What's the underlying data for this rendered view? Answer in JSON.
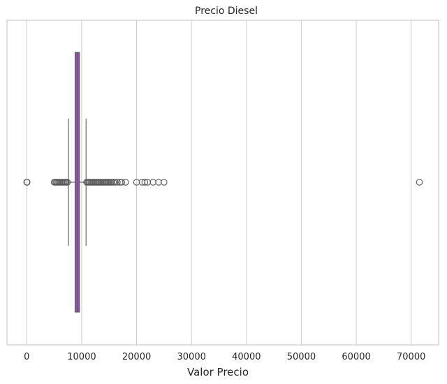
{
  "chart_data": {
    "type": "boxplot",
    "orientation": "horizontal",
    "title": "Precio Diesel",
    "xlabel": "Valor Precio",
    "ylabel": "",
    "xlim": [
      -3600,
      75000
    ],
    "x_ticks": [
      0,
      10000,
      20000,
      30000,
      40000,
      50000,
      60000,
      70000
    ],
    "x_tick_labels": [
      "0",
      "10000",
      "20000",
      "30000",
      "40000",
      "50000",
      "60000",
      "70000"
    ],
    "grid": true,
    "box": {
      "whisker_low": 7600,
      "q1": 8800,
      "median": 9200,
      "q3": 9600,
      "whisker_high": 10800
    },
    "outliers": [
      0,
      30,
      60,
      5000,
      5200,
      5400,
      5600,
      5800,
      6000,
      6200,
      6400,
      6600,
      6800,
      7000,
      7200,
      7400,
      10900,
      11100,
      11300,
      11500,
      11700,
      11900,
      12100,
      12300,
      12500,
      12700,
      12900,
      13100,
      13300,
      13500,
      13700,
      13900,
      14100,
      14300,
      14500,
      14700,
      14900,
      15100,
      15300,
      15500,
      15800,
      16100,
      16500,
      17000,
      17300,
      18000,
      20000,
      21000,
      21500,
      22000,
      23000,
      24000,
      25000,
      71500
    ],
    "colors": {
      "box_fill": "#9b51b7",
      "line": "#595959",
      "grid": "#cccccc",
      "frame": "#cccccc"
    }
  }
}
